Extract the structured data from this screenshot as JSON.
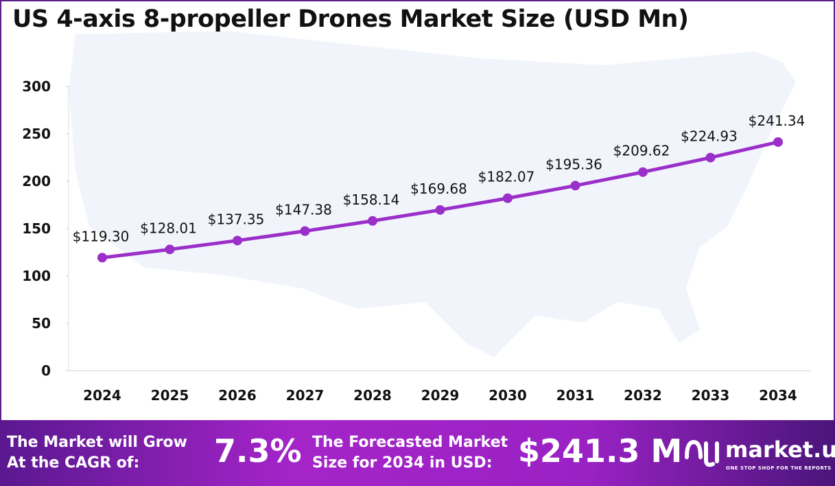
{
  "title": "US 4-axis 8-propeller Drones Market Size (USD Mn)",
  "chart_data": {
    "type": "line",
    "title": "US 4-axis 8-propeller Drones Market Size (USD Mn)",
    "categories": [
      "2024",
      "2025",
      "2026",
      "2027",
      "2028",
      "2029",
      "2030",
      "2031",
      "2032",
      "2033",
      "2034"
    ],
    "values": [
      119.3,
      128.01,
      137.35,
      147.38,
      158.14,
      169.68,
      182.07,
      195.36,
      209.62,
      224.93,
      241.34
    ],
    "data_labels": [
      "$119.30",
      "$128.01",
      "$137.35",
      "$147.38",
      "$158.14",
      "$169.68",
      "$182.07",
      "$195.36",
      "$209.62",
      "$224.93",
      "$241.34"
    ],
    "yticks": [
      "0",
      "50",
      "100",
      "150",
      "200",
      "250",
      "300"
    ],
    "ylim": [
      0,
      300
    ],
    "grid": false,
    "line_color": "#9b2fc9",
    "background": "US map silhouette"
  },
  "footer": {
    "cagr_label_1": "The Market will Grow",
    "cagr_label_2": "At the CAGR of:",
    "cagr_value": "7.3%",
    "forecast_label_1": "The Forecasted Market",
    "forecast_label_2": "Size for 2034 in USD:",
    "forecast_value": "$241.3 M",
    "logo_name": "market.us",
    "logo_tagline": "ONE STOP SHOP FOR THE REPORTS"
  }
}
